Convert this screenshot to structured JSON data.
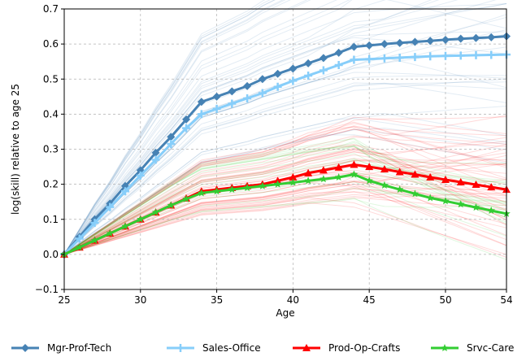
{
  "chart_data": {
    "type": "line",
    "xlabel": "Age",
    "ylabel": "log(skill) relative to age 25",
    "xlim": [
      25,
      54
    ],
    "ylim": [
      -0.1,
      0.7
    ],
    "x_ticks": [
      "25",
      "30",
      "35",
      "40",
      "45",
      "50",
      "54"
    ],
    "y_ticks": [
      "−0.1",
      "0.0",
      "0.1",
      "0.2",
      "0.3",
      "0.4",
      "0.5",
      "0.6",
      "0.7"
    ],
    "grid": true,
    "legend_position": "bottom",
    "x": [
      25,
      26,
      27,
      28,
      29,
      30,
      31,
      32,
      33,
      34,
      35,
      36,
      37,
      38,
      39,
      40,
      41,
      42,
      43,
      44,
      45,
      46,
      47,
      48,
      49,
      50,
      51,
      52,
      53,
      54
    ],
    "series": [
      {
        "name": "Mgr-Prof-Tech",
        "color": "#4682b4",
        "marker": "diamond",
        "values": [
          0.0,
          0.05,
          0.1,
          0.145,
          0.195,
          0.24,
          0.29,
          0.335,
          0.385,
          0.435,
          0.45,
          0.465,
          0.48,
          0.5,
          0.515,
          0.53,
          0.545,
          0.56,
          0.575,
          0.592,
          0.596,
          0.6,
          0.603,
          0.606,
          0.609,
          0.612,
          0.615,
          0.617,
          0.619,
          0.622
        ]
      },
      {
        "name": "Sales-Office",
        "color": "#87cefa",
        "marker": "plus",
        "values": [
          0.0,
          0.045,
          0.09,
          0.135,
          0.18,
          0.225,
          0.27,
          0.315,
          0.36,
          0.4,
          0.415,
          0.43,
          0.445,
          0.46,
          0.478,
          0.495,
          0.51,
          0.525,
          0.54,
          0.555,
          0.557,
          0.559,
          0.561,
          0.563,
          0.565,
          0.566,
          0.567,
          0.568,
          0.569,
          0.57
        ]
      },
      {
        "name": "Prod-Op-Crafts",
        "color": "#ff0000",
        "marker": "triangle",
        "values": [
          0.0,
          0.02,
          0.04,
          0.06,
          0.08,
          0.1,
          0.12,
          0.14,
          0.16,
          0.18,
          0.185,
          0.19,
          0.195,
          0.2,
          0.21,
          0.22,
          0.232,
          0.24,
          0.248,
          0.256,
          0.25,
          0.243,
          0.235,
          0.228,
          0.22,
          0.213,
          0.206,
          0.199,
          0.192,
          0.185
        ]
      },
      {
        "name": "Srvc-Care",
        "color": "#32cd32",
        "marker": "star",
        "values": [
          0.0,
          0.02,
          0.04,
          0.06,
          0.08,
          0.1,
          0.12,
          0.14,
          0.158,
          0.175,
          0.18,
          0.185,
          0.19,
          0.195,
          0.2,
          0.205,
          0.21,
          0.215,
          0.22,
          0.228,
          0.21,
          0.197,
          0.185,
          0.173,
          0.161,
          0.152,
          0.143,
          0.134,
          0.125,
          0.116
        ]
      }
    ],
    "background_bands": [
      {
        "color": "#4682b4",
        "count": 40,
        "mean_end": 0.56,
        "spread_end": 0.14
      },
      {
        "color": "#ff0000",
        "count": 50,
        "mean_end": 0.13,
        "spread_end": 0.14
      },
      {
        "color": "#32cd32",
        "count": 20,
        "mean_end": 0.1,
        "spread_end": 0.1
      }
    ]
  }
}
